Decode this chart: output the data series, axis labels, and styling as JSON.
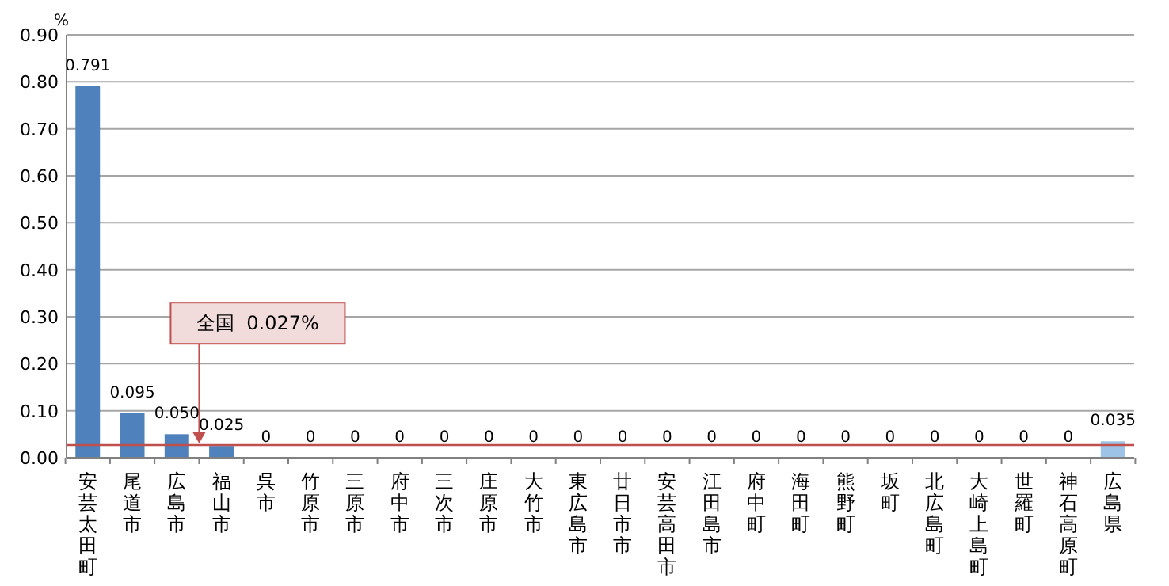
{
  "chart_data": {
    "type": "bar",
    "ylabel": "%",
    "categories": [
      "安芸太田町",
      "尾道市",
      "広島市",
      "福山市",
      "呉市",
      "竹原市",
      "三原市",
      "府中市",
      "三次市",
      "庄原市",
      "大竹市",
      "東広島市",
      "廿日市市",
      "安芸高田市",
      "江田島市",
      "府中町",
      "海田町",
      "熊野町",
      "坂町",
      "北広島町",
      "大崎上島町",
      "世羅町",
      "神石高原町",
      "広島県"
    ],
    "values": [
      0.791,
      0.095,
      0.05,
      0.025,
      0,
      0,
      0,
      0,
      0,
      0,
      0,
      0,
      0,
      0,
      0,
      0,
      0,
      0,
      0,
      0,
      0,
      0,
      0,
      0.035
    ],
    "value_labels": [
      "0.791",
      "0.095",
      "0.050",
      "0.025",
      "0",
      "0",
      "0",
      "0",
      "0",
      "0",
      "0",
      "0",
      "0",
      "0",
      "0",
      "0",
      "0",
      "0",
      "0",
      "0",
      "0",
      "0",
      "0",
      "0.035"
    ],
    "colors": [
      "#4f81bd",
      "#4f81bd",
      "#4f81bd",
      "#4f81bd",
      "#4f81bd",
      "#4f81bd",
      "#4f81bd",
      "#4f81bd",
      "#4f81bd",
      "#4f81bd",
      "#4f81bd",
      "#4f81bd",
      "#4f81bd",
      "#4f81bd",
      "#4f81bd",
      "#4f81bd",
      "#4f81bd",
      "#4f81bd",
      "#4f81bd",
      "#4f81bd",
      "#4f81bd",
      "#4f81bd",
      "#4f81bd",
      "#9dc3e6"
    ],
    "ylim": [
      0,
      0.9
    ],
    "yticks": [
      {
        "value": 0,
        "label": "0.00"
      },
      {
        "value": 0.1,
        "label": "0.10"
      },
      {
        "value": 0.2,
        "label": "0.20"
      },
      {
        "value": 0.3,
        "label": "0.30"
      },
      {
        "value": 0.4,
        "label": "0.40"
      },
      {
        "value": 0.5,
        "label": "0.50"
      },
      {
        "value": 0.6,
        "label": "0.60"
      },
      {
        "value": 0.7,
        "label": "0.70"
      },
      {
        "value": 0.8,
        "label": "0.80"
      },
      {
        "value": 0.9,
        "label": "0.90"
      }
    ],
    "grid": "y",
    "ref_lines": [
      {
        "axis": "y",
        "value": 0.027,
        "label": "全国  0.027%",
        "color": "#c0504d"
      }
    ]
  }
}
